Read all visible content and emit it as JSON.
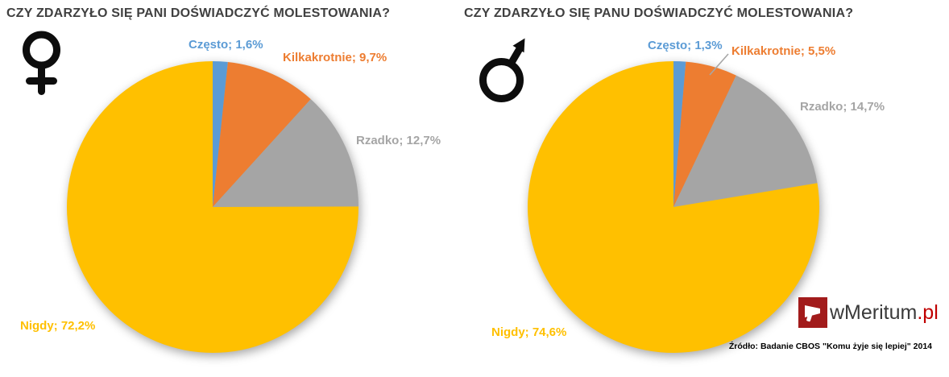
{
  "colors": {
    "czesto": "#5B9BD5",
    "kilkakrotnie": "#ED7D31",
    "rzadko": "#A5A5A5",
    "nigdy": "#FFC000",
    "title": "#404040",
    "source": "#000000",
    "logo_box": "#A21B1B",
    "logo_name": "#3A3A3A",
    "logo_suffix": "#C00000",
    "leader_line": "#A6A6A6",
    "gender_icon": "#0D0D0D",
    "megaphone": "#FFFFFF"
  },
  "charts": [
    {
      "title": "CZY ZDARZYŁO SIĘ PANI DOŚWIADCZYĆ MOLESTOWANIA?",
      "gender": "female",
      "labels": {
        "czesto": "Często; 1,6%",
        "kilkakrotnie": "Kilkakrotnie; 9,7%",
        "rzadko": "Rzadko; 12,7%",
        "nigdy": "Nigdy; 72,2%"
      }
    },
    {
      "title": "CZY ZDARZYŁO SIĘ PANU DOŚWIADCZYĆ MOLESTOWANIA?",
      "gender": "male",
      "labels": {
        "czesto": "Często; 1,3%",
        "kilkakrotnie": "Kilkakrotnie; 5,5%",
        "rzadko": "Rzadko; 14,7%",
        "nigdy": "Nigdy; 74,6%"
      }
    }
  ],
  "chart_data": [
    {
      "type": "pie",
      "title": "CZY ZDARZYŁO SIĘ PANI DOŚWIADCZYĆ MOLESTOWANIA?",
      "categories": [
        "Często",
        "Kilkakrotnie",
        "Rzadko",
        "Nigdy"
      ],
      "keys": [
        "czesto",
        "kilkakrotnie",
        "rzadko",
        "nigdy"
      ],
      "values": [
        1.6,
        9.7,
        12.7,
        72.2
      ],
      "unit": "%",
      "colors": [
        "#5B9BD5",
        "#ED7D31",
        "#A5A5A5",
        "#FFC000"
      ],
      "start_angle_deg": 0,
      "direction": "clockwise",
      "data_labels": [
        "Często; 1,6%",
        "Kilkakrotnie; 9,7%",
        "Rzadko; 12,7%",
        "Nigdy; 72,2%"
      ],
      "legend": "none"
    },
    {
      "type": "pie",
      "title": "CZY ZDARZYŁO SIĘ PANU DOŚWIADCZYĆ MOLESTOWANIA?",
      "categories": [
        "Często",
        "Kilkakrotnie",
        "Rzadko",
        "Nigdy"
      ],
      "keys": [
        "czesto",
        "kilkakrotnie",
        "rzadko",
        "nigdy"
      ],
      "values": [
        1.3,
        5.5,
        14.7,
        74.6
      ],
      "unit": "%",
      "colors": [
        "#5B9BD5",
        "#ED7D31",
        "#A5A5A5",
        "#FFC000"
      ],
      "start_angle_deg": 0,
      "direction": "clockwise",
      "data_labels": [
        "Często; 1,3%",
        "Kilkakrotnie; 5,5%",
        "Rzadko; 14,7%",
        "Nigdy; 74,6%"
      ],
      "legend": "none"
    }
  ],
  "footer": {
    "source": "Źródło: Badanie CBOS \"Komu żyje się lepiej\" 2014",
    "logo_name": "wMeritum",
    "logo_suffix": ".pl"
  }
}
